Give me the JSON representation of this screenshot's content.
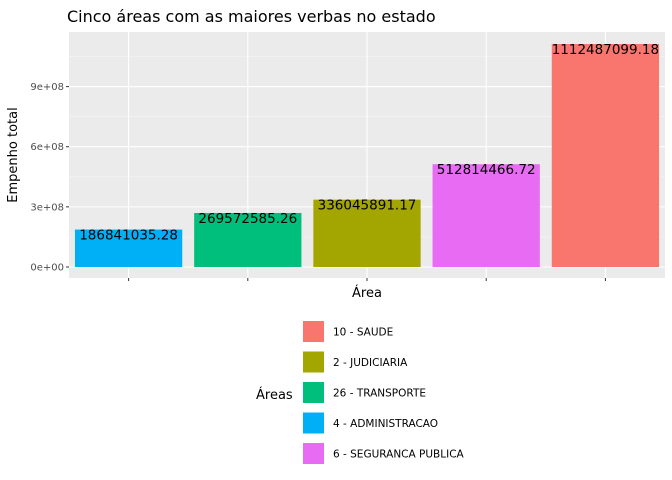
{
  "chart_data": {
    "type": "bar",
    "title": "Cinco áreas com as maiores verbas no estado",
    "xlabel": "Área",
    "ylabel": "Empenho total",
    "ylim": [
      0,
      1150000000
    ],
    "y_ticks": [
      0,
      300000000,
      600000000,
      900000000
    ],
    "y_tick_labels": [
      "0e+00",
      "3e+08",
      "6e+08",
      "9e+08"
    ],
    "grid": true,
    "x_tick_labels_shown": false,
    "categories": [
      "4 - ADMINISTRACAO",
      "26 - TRANSPORTE",
      "2 - JUDICIARIA",
      "6 - SEGURANCA PUBLICA",
      "10 - SAUDE"
    ],
    "values": [
      186841035.28,
      269572585.26,
      336045891.17,
      512814466.72,
      1112487099.18
    ],
    "data_labels": [
      "186841035.28",
      "269572585.26",
      "336045891.17",
      "512814466.72",
      "1112487099.18"
    ],
    "colors": [
      "#00B0F6",
      "#00BF7D",
      "#A3A500",
      "#E76BF3",
      "#F8766D"
    ],
    "legend": {
      "title": "Áreas",
      "position": "bottom",
      "entries": [
        {
          "label": "10 - SAUDE",
          "color": "#F8766D"
        },
        {
          "label": "2 - JUDICIARIA",
          "color": "#A3A500"
        },
        {
          "label": "26 - TRANSPORTE",
          "color": "#00BF7D"
        },
        {
          "label": "4 - ADMINISTRACAO",
          "color": "#00B0F6"
        },
        {
          "label": "6 - SEGURANCA PUBLICA",
          "color": "#E76BF3"
        }
      ]
    },
    "panel_background": "#EBEBEB"
  }
}
